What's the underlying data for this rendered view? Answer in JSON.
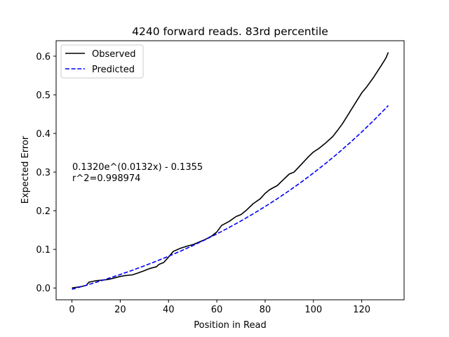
{
  "chart_data": {
    "type": "line",
    "title": "4240 forward reads. 83rd percentile",
    "xlabel": "Position in Read",
    "ylabel": "Expected Error",
    "xlim": [
      -6.55,
      137.55
    ],
    "ylim": [
      -0.0305,
      0.64
    ],
    "xticks": [
      0,
      20,
      40,
      60,
      80,
      100,
      120
    ],
    "yticks": [
      0.0,
      0.1,
      0.2,
      0.3,
      0.4,
      0.5,
      0.6
    ],
    "xtick_labels": [
      "0",
      "20",
      "40",
      "60",
      "80",
      "100",
      "120"
    ],
    "ytick_labels": [
      "0.0",
      "0.1",
      "0.2",
      "0.3",
      "0.4",
      "0.5",
      "0.6"
    ],
    "grid": false,
    "legend_position": "top-left",
    "annotation": {
      "line1": "0.1320e^(0.0132x) - 0.1355",
      "line2": "r^2=0.998974"
    },
    "series": [
      {
        "name": "Observed",
        "color": "#000000",
        "style": "solid",
        "x": [
          0,
          2,
          4,
          6,
          7,
          10,
          12,
          15,
          17,
          20,
          22,
          25,
          27,
          30,
          32,
          35,
          36,
          38,
          40,
          42,
          45,
          48,
          50,
          55,
          58,
          60,
          62,
          65,
          68,
          70,
          72,
          75,
          78,
          80,
          82,
          85,
          88,
          90,
          92,
          95,
          98,
          100,
          102,
          105,
          108,
          110,
          112,
          115,
          118,
          120,
          122,
          125,
          128,
          130,
          131
        ],
        "y": [
          0.0,
          0.002,
          0.004,
          0.007,
          0.015,
          0.019,
          0.02,
          0.022,
          0.025,
          0.03,
          0.032,
          0.034,
          0.038,
          0.045,
          0.05,
          0.055,
          0.061,
          0.066,
          0.08,
          0.095,
          0.103,
          0.109,
          0.112,
          0.125,
          0.135,
          0.145,
          0.162,
          0.172,
          0.185,
          0.19,
          0.2,
          0.218,
          0.231,
          0.245,
          0.255,
          0.265,
          0.283,
          0.295,
          0.3,
          0.32,
          0.34,
          0.352,
          0.36,
          0.375,
          0.392,
          0.408,
          0.425,
          0.455,
          0.485,
          0.505,
          0.52,
          0.546,
          0.575,
          0.595,
          0.61
        ]
      },
      {
        "name": "Predicted",
        "color": "#0000ff",
        "style": "dashed",
        "x": [
          0,
          5,
          10,
          15,
          20,
          25,
          30,
          35,
          40,
          45,
          50,
          55,
          60,
          65,
          70,
          75,
          80,
          85,
          90,
          95,
          100,
          105,
          110,
          115,
          120,
          125,
          130,
          131
        ],
        "y": [
          -0.0035,
          0.0054,
          0.0148,
          0.0246,
          0.035,
          0.0459,
          0.0574,
          0.0695,
          0.0822,
          0.0956,
          0.1096,
          0.1244,
          0.14,
          0.1564,
          0.1736,
          0.1918,
          0.2108,
          0.2309,
          0.252,
          0.2742,
          0.2976,
          0.3221,
          0.348,
          0.3752,
          0.4038,
          0.4339,
          0.4656,
          0.4722
        ]
      }
    ]
  }
}
